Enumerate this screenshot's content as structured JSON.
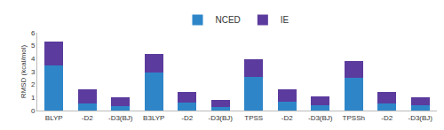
{
  "chart_data": {
    "type": "bar",
    "y_label": "RMSD (kcal/mol)",
    "categories": [
      "BLYP",
      "-D2",
      "-D3(BJ)",
      "B3LYP",
      "-D2",
      "-D3(BJ)",
      "TPSS",
      "-D2",
      "-D3(BJ)",
      "TPSSh",
      "-D2",
      "-D3(BJ)"
    ],
    "series": [
      {
        "name": "NCED",
        "color": "#2e86c9",
        "values": [
          3.5,
          0.55,
          0.35,
          2.9,
          0.6,
          0.3,
          2.6,
          0.65,
          0.4,
          2.5,
          0.55,
          0.4
        ]
      },
      {
        "name": "IE",
        "color": "#5c3b9e",
        "values": [
          1.8,
          1.1,
          0.7,
          1.45,
          0.85,
          0.5,
          1.35,
          1.0,
          0.7,
          1.35,
          0.85,
          0.6
        ]
      }
    ],
    "stacked": true,
    "ylim": [
      0,
      6
    ],
    "yticks": [
      0,
      1,
      2,
      3,
      4,
      5,
      6
    ],
    "grid": false,
    "legend": "top"
  }
}
